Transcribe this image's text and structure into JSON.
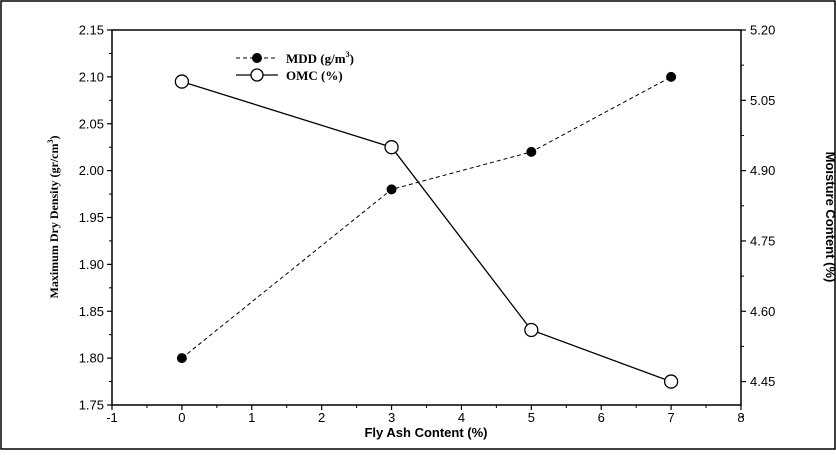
{
  "chart_data": {
    "type": "line",
    "x": [
      0,
      3,
      5,
      7
    ],
    "xlabel": "Fly Ash Content (%)",
    "xlim": [
      -1,
      8
    ],
    "xticks": [
      "-1",
      "0",
      "1",
      "2",
      "3",
      "4",
      "5",
      "6",
      "7",
      "8"
    ],
    "ylabel_left": "Maximum Dry Density (gr/cm",
    "ylabel_left_sup": "3",
    "ylabel_left_end": ")",
    "ylim_left": [
      1.75,
      2.15
    ],
    "yticks_left": [
      "1.75",
      "1.80",
      "1.85",
      "1.90",
      "1.95",
      "2.00",
      "2.05",
      "2.10",
      "2.15"
    ],
    "ylabel_right": "Moisture Content (%)",
    "ylim_right": [
      4.4,
      5.2
    ],
    "yticks_right": [
      "4.45",
      "4.60",
      "4.75",
      "4.90",
      "5.05",
      "5.20"
    ],
    "grid": false,
    "legend_position": "top-center",
    "series": [
      {
        "name": "MDD (g/m",
        "name_sup": "3",
        "name_end": ")",
        "axis": "left",
        "values": [
          1.8,
          1.98,
          2.02,
          2.1
        ],
        "line_style": "dashed",
        "marker": "filled-circle",
        "color": "#000000"
      },
      {
        "name": "OMC (%)",
        "axis": "right",
        "values": [
          5.09,
          4.95,
          4.56,
          4.45
        ],
        "line_style": "solid",
        "marker": "open-circle",
        "color": "#000000"
      }
    ]
  }
}
